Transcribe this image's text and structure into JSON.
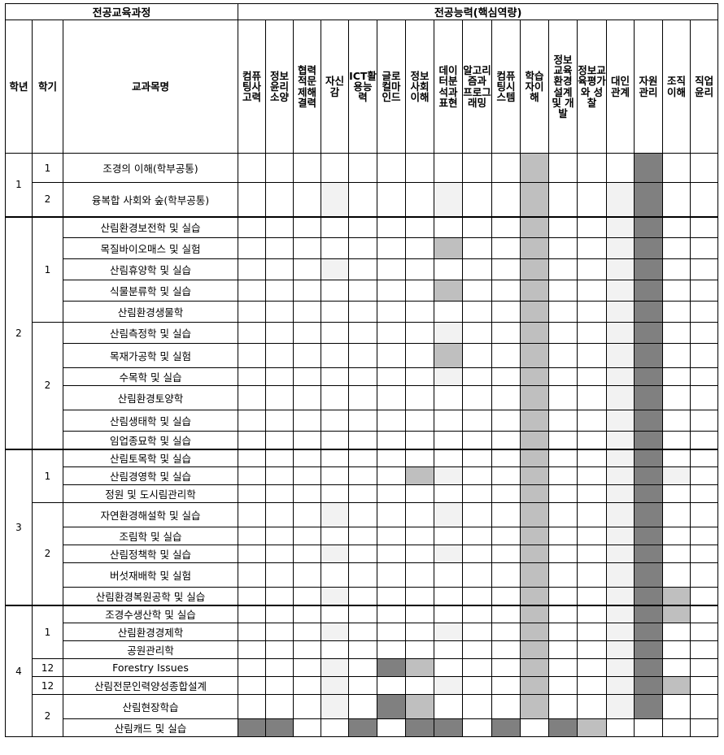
{
  "header": {
    "curriculum": "전공교육과정",
    "competency": "전공능력(핵심역량)",
    "year": "학년",
    "semester": "학기",
    "course": "교과목명"
  },
  "competencies": [
    "컴퓨팅사고력",
    "정보윤리소양",
    "협력적문제해결력",
    "자신감",
    "ICT활용능력",
    "글로컬마인드",
    "정보사회이해",
    "데이터분석과표현",
    "알고리즘과 프로그래밍",
    "컴퓨팅시스템",
    "학습자이해",
    "정보교육환경설계 및 개발",
    "정보교육평가와 성찰",
    "대인관계",
    "자원관리",
    "조직이해",
    "직업윤리"
  ],
  "legend_levels": {
    "0": "none",
    "1": "#f2f2f2",
    "2": "#bfbfbf",
    "3": "#808080"
  },
  "years": [
    {
      "year": "1",
      "semesters": [
        {
          "semester": "1",
          "courses": [
            {
              "name": "조경의 이해(학부공통)",
              "levels": [
                0,
                0,
                0,
                0,
                0,
                0,
                0,
                0,
                0,
                0,
                2,
                0,
                0,
                0,
                3,
                0,
                0
              ]
            }
          ]
        },
        {
          "semester": "2",
          "courses": [
            {
              "name": "융복합 사회와 숲(학부공통)",
              "levels": [
                0,
                0,
                0,
                1,
                0,
                0,
                0,
                1,
                0,
                0,
                2,
                0,
                0,
                1,
                3,
                0,
                0
              ]
            }
          ]
        }
      ]
    },
    {
      "year": "2",
      "semesters": [
        {
          "semester": "1",
          "courses": [
            {
              "name": "산림환경보전학 및 실습",
              "levels": [
                0,
                0,
                0,
                0,
                0,
                0,
                0,
                0,
                0,
                0,
                2,
                0,
                0,
                1,
                3,
                0,
                0
              ]
            },
            {
              "name": "목질바이오매스 및 실험",
              "levels": [
                0,
                0,
                0,
                0,
                0,
                0,
                0,
                2,
                0,
                0,
                2,
                0,
                0,
                1,
                3,
                0,
                0
              ]
            },
            {
              "name": "산림휴양학 및 실습",
              "levels": [
                0,
                0,
                0,
                1,
                0,
                0,
                0,
                0,
                0,
                0,
                2,
                0,
                0,
                1,
                3,
                0,
                0
              ]
            },
            {
              "name": "식물분류학 및 실습",
              "levels": [
                0,
                0,
                0,
                0,
                0,
                0,
                0,
                2,
                0,
                0,
                2,
                0,
                0,
                1,
                3,
                0,
                0
              ]
            },
            {
              "name": "산림환경생물학",
              "levels": [
                0,
                0,
                0,
                0,
                0,
                0,
                0,
                0,
                0,
                0,
                2,
                0,
                0,
                1,
                3,
                0,
                0
              ]
            }
          ]
        },
        {
          "semester": "2",
          "courses": [
            {
              "name": "산림측정학 및 실습",
              "levels": [
                0,
                0,
                0,
                0,
                0,
                0,
                0,
                1,
                0,
                0,
                2,
                0,
                0,
                1,
                3,
                0,
                0
              ]
            },
            {
              "name": "목재가공학 및 실험",
              "levels": [
                0,
                0,
                0,
                0,
                0,
                0,
                0,
                2,
                0,
                0,
                2,
                0,
                0,
                1,
                3,
                0,
                0
              ]
            },
            {
              "name": "수목학 및 실습",
              "levels": [
                0,
                0,
                0,
                0,
                0,
                0,
                0,
                1,
                0,
                0,
                2,
                0,
                0,
                1,
                3,
                0,
                0
              ]
            },
            {
              "name": "산림환경토양학",
              "levels": [
                0,
                0,
                0,
                0,
                0,
                0,
                0,
                0,
                0,
                0,
                2,
                0,
                0,
                1,
                3,
                0,
                0
              ]
            },
            {
              "name": "산림생태학 및 실습",
              "levels": [
                0,
                0,
                0,
                0,
                0,
                0,
                0,
                0,
                0,
                0,
                2,
                0,
                0,
                1,
                3,
                0,
                0
              ]
            },
            {
              "name": "임업종묘학 및 실습",
              "levels": [
                0,
                0,
                0,
                0,
                0,
                0,
                0,
                0,
                0,
                0,
                2,
                0,
                0,
                1,
                3,
                0,
                0
              ]
            }
          ]
        }
      ]
    },
    {
      "year": "3",
      "semesters": [
        {
          "semester": "1",
          "courses": [
            {
              "name": "산림토목학 및 실습",
              "levels": [
                0,
                0,
                0,
                0,
                0,
                0,
                0,
                0,
                0,
                0,
                2,
                0,
                0,
                1,
                3,
                0,
                0
              ]
            },
            {
              "name": "산림경영학 및 실습",
              "levels": [
                0,
                0,
                0,
                0,
                0,
                0,
                2,
                1,
                0,
                0,
                2,
                0,
                0,
                1,
                3,
                1,
                0
              ]
            },
            {
              "name": "정원 및 도시림관리학",
              "levels": [
                0,
                0,
                0,
                0,
                0,
                0,
                0,
                0,
                0,
                0,
                2,
                0,
                0,
                1,
                3,
                0,
                0
              ]
            }
          ]
        },
        {
          "semester": "2",
          "courses": [
            {
              "name": "자연환경해설학 및 실습",
              "levels": [
                0,
                0,
                0,
                1,
                0,
                0,
                0,
                1,
                0,
                0,
                2,
                0,
                0,
                1,
                3,
                0,
                0
              ]
            },
            {
              "name": "조림학 및 실습",
              "levels": [
                0,
                0,
                0,
                0,
                0,
                0,
                0,
                0,
                0,
                0,
                2,
                0,
                0,
                1,
                3,
                0,
                0
              ]
            },
            {
              "name": "산림정책학 및 실습",
              "levels": [
                0,
                0,
                0,
                1,
                0,
                0,
                0,
                1,
                0,
                0,
                2,
                0,
                0,
                1,
                3,
                0,
                0
              ]
            },
            {
              "name": "버섯재배학 및 실험",
              "levels": [
                0,
                0,
                0,
                0,
                0,
                0,
                0,
                0,
                0,
                0,
                2,
                0,
                0,
                1,
                3,
                0,
                0
              ]
            },
            {
              "name": "산림환경복원공학 및 실습",
              "levels": [
                0,
                0,
                0,
                1,
                0,
                0,
                0,
                0,
                0,
                0,
                2,
                0,
                0,
                1,
                3,
                2,
                0
              ]
            }
          ]
        }
      ]
    },
    {
      "year": "4",
      "semesters": [
        {
          "semester": "1",
          "courses": [
            {
              "name": "조경수생산학 및 실습",
              "levels": [
                0,
                0,
                0,
                0,
                0,
                0,
                0,
                0,
                0,
                0,
                2,
                0,
                0,
                1,
                3,
                2,
                0
              ]
            },
            {
              "name": "산림환경경제학",
              "levels": [
                0,
                0,
                0,
                1,
                0,
                0,
                0,
                1,
                0,
                0,
                2,
                0,
                0,
                1,
                3,
                0,
                0
              ]
            },
            {
              "name": "공원관리학",
              "levels": [
                0,
                0,
                0,
                0,
                0,
                0,
                0,
                0,
                0,
                0,
                2,
                0,
                0,
                1,
                3,
                0,
                0
              ]
            }
          ]
        },
        {
          "semester": "12",
          "courses": [
            {
              "name": "Forestry Issues",
              "levels": [
                0,
                0,
                0,
                1,
                0,
                3,
                2,
                0,
                0,
                0,
                2,
                0,
                0,
                1,
                3,
                0,
                0
              ]
            }
          ]
        },
        {
          "semester": "12",
          "courses": [
            {
              "name": "산림전문인력양성종합설계",
              "levels": [
                0,
                0,
                0,
                1,
                0,
                0,
                0,
                1,
                0,
                0,
                2,
                0,
                0,
                1,
                3,
                2,
                0
              ]
            }
          ]
        },
        {
          "semester": "2",
          "courses": [
            {
              "name": "산림현장학습",
              "levels": [
                0,
                0,
                0,
                1,
                0,
                3,
                2,
                0,
                0,
                0,
                2,
                0,
                0,
                1,
                3,
                0,
                0
              ]
            },
            {
              "name": "산림캐드 및 실습",
              "levels": [
                3,
                3,
                0,
                0,
                3,
                0,
                3,
                3,
                0,
                3,
                0,
                3,
                2,
                0,
                0,
                0,
                0
              ]
            }
          ]
        }
      ]
    }
  ]
}
